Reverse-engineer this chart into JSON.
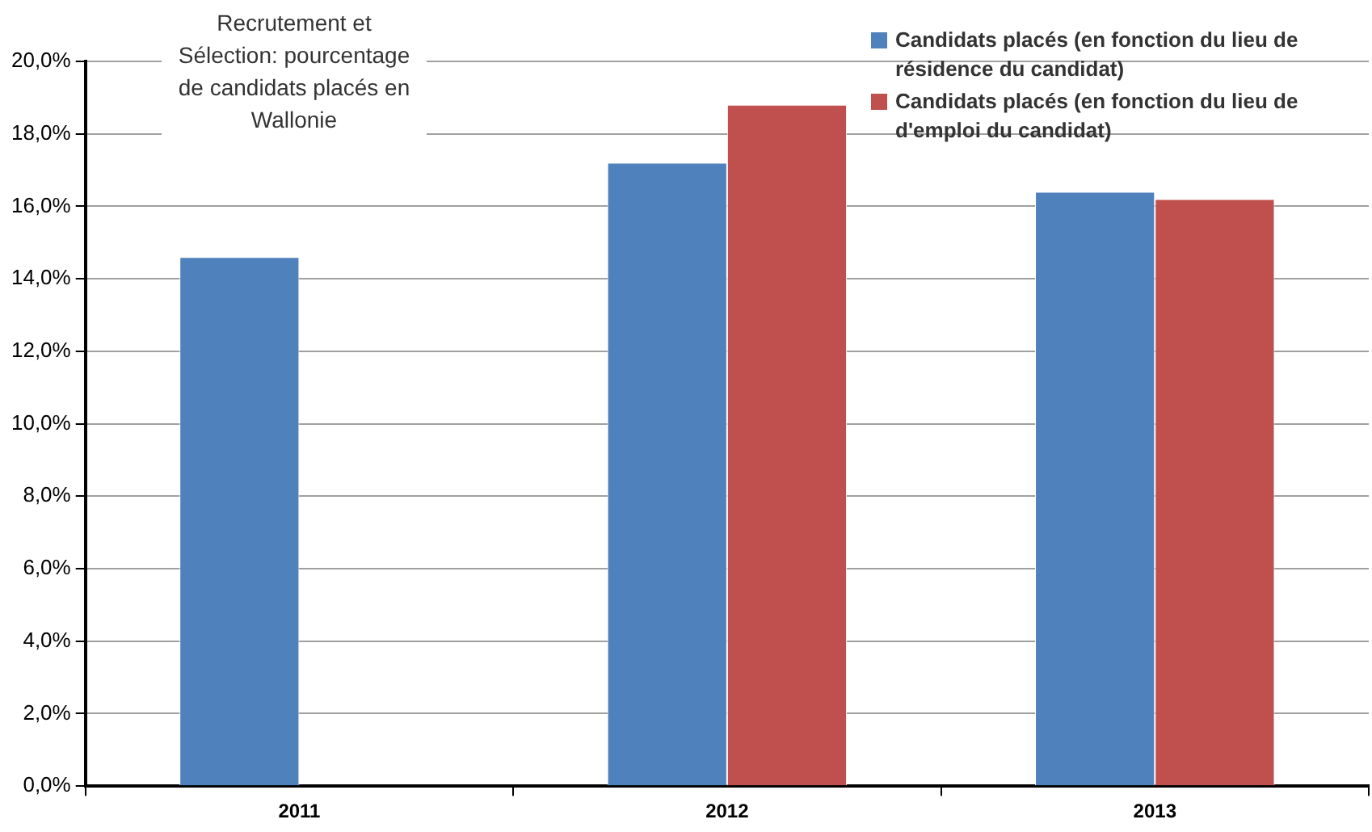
{
  "chart_data": {
    "type": "bar",
    "title": "Recrutement et Sélection: pourcentage de candidats placés en Wallonie",
    "categories": [
      "2011",
      "2012",
      "2013"
    ],
    "series": [
      {
        "name": "Candidats placés (en fonction du lieu de résidence du candidat)",
        "color": "#4f81bd",
        "values": [
          14.6,
          17.2,
          16.4
        ]
      },
      {
        "name": "Candidats placés (en fonction du lieu de d'emploi du candidat)",
        "color": "#c0504d",
        "values": [
          null,
          18.8,
          16.2
        ]
      }
    ],
    "ylim": [
      0,
      20
    ],
    "yticks": [
      {
        "value": 0,
        "label": "0,0%"
      },
      {
        "value": 2,
        "label": "2,0%"
      },
      {
        "value": 4,
        "label": "4,0%"
      },
      {
        "value": 6,
        "label": "6,0%"
      },
      {
        "value": 8,
        "label": "8,0%"
      },
      {
        "value": 10,
        "label": "10,0%"
      },
      {
        "value": 12,
        "label": "12,0%"
      },
      {
        "value": 14,
        "label": "14,0%"
      },
      {
        "value": 16,
        "label": "16,0%"
      },
      {
        "value": 18,
        "label": "18,0%"
      },
      {
        "value": 20,
        "label": "20,0%"
      }
    ],
    "grid": "y",
    "legend": "top right"
  }
}
